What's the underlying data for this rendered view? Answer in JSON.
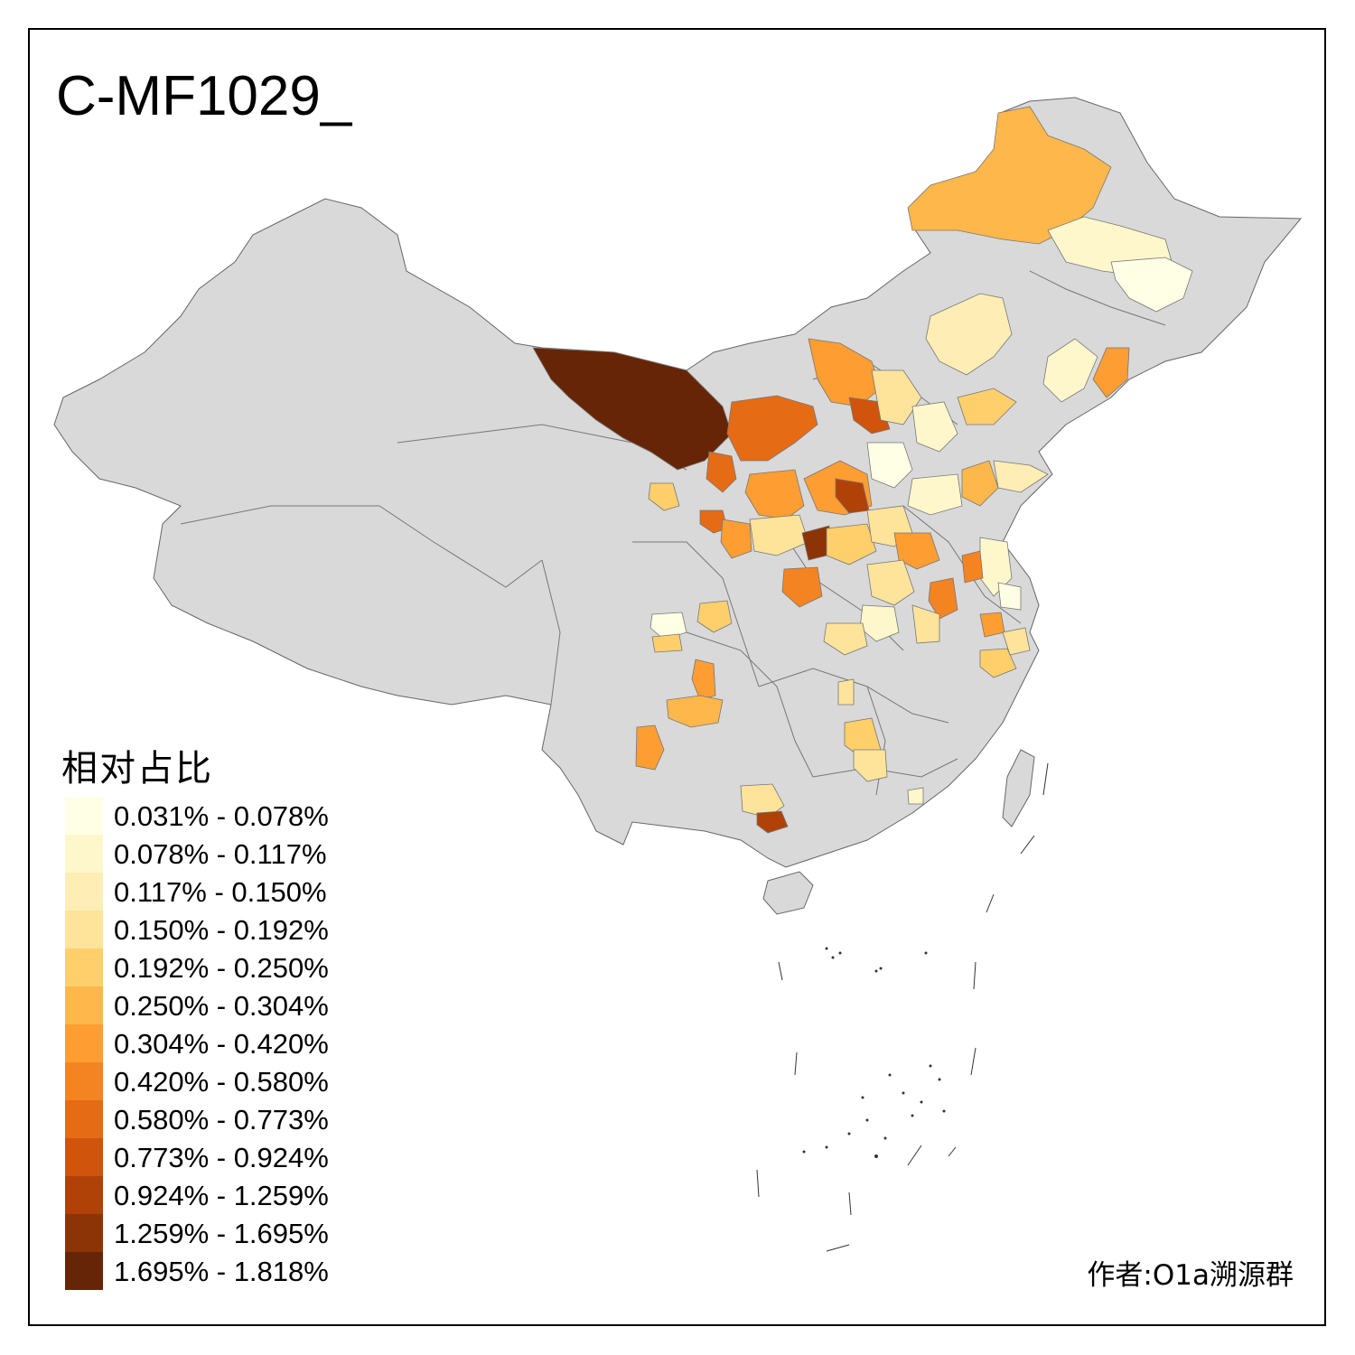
{
  "title": "C-MF1029_",
  "legend": {
    "title": "相对占比",
    "items": [
      {
        "label": "0.031% - 0.078%",
        "color": "#FFFFE5"
      },
      {
        "label": "0.078% - 0.117%",
        "color": "#FFF7CC"
      },
      {
        "label": "0.117% - 0.150%",
        "color": "#FEEEB5"
      },
      {
        "label": "0.150% - 0.192%",
        "color": "#FEE39B"
      },
      {
        "label": "0.192% - 0.250%",
        "color": "#FECF6B"
      },
      {
        "label": "0.250% - 0.304%",
        "color": "#FEB74A"
      },
      {
        "label": "0.304% - 0.420%",
        "color": "#FD9D32"
      },
      {
        "label": "0.420% - 0.580%",
        "color": "#F48422"
      },
      {
        "label": "0.580% - 0.773%",
        "color": "#E56B15"
      },
      {
        "label": "0.773% - 0.924%",
        "color": "#D0540B"
      },
      {
        "label": "0.924% - 1.259%",
        "color": "#B04207"
      },
      {
        "label": "1.259% - 1.695%",
        "color": "#8D3406"
      },
      {
        "label": "1.695% - 1.818%",
        "color": "#662506"
      }
    ]
  },
  "credit": "作者:O1a溯源群",
  "colors": {
    "background": "#ffffff",
    "no_data": "#D9D9D9",
    "border": "#555555"
  }
}
